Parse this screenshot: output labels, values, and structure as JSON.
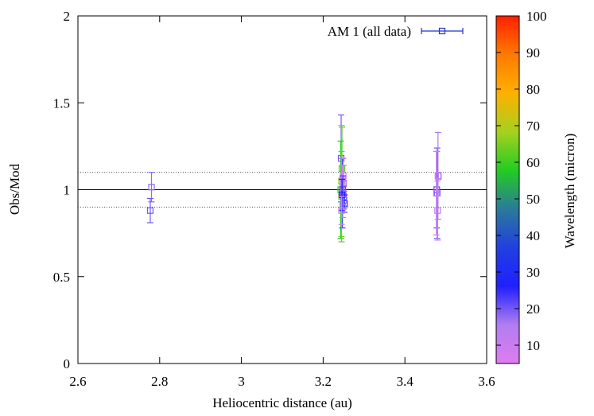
{
  "chart_data": {
    "type": "scatter",
    "xlabel": "Heliocentric distance (au)",
    "ylabel": "Obs/Mod",
    "xlim": [
      2.6,
      3.6
    ],
    "ylim": [
      0,
      2
    ],
    "xticks": [
      "2.6",
      "2.8",
      "3",
      "3.2",
      "3.4",
      "3.6"
    ],
    "yticks": [
      "0",
      "0.5",
      "1",
      "1.5",
      "2"
    ],
    "grid": false,
    "legend_position": "top-right",
    "series": [
      {
        "name": "AM 1 (all data)",
        "marker": "open-square",
        "legend_color": "#2233cc",
        "points": [
          {
            "x": 2.78,
            "y": 1.015,
            "err": 0.085,
            "wl": 18
          },
          {
            "x": 2.777,
            "y": 0.88,
            "err": 0.07,
            "wl": 20
          },
          {
            "x": 3.244,
            "y": 1.18,
            "err": 0.25,
            "wl": 20
          },
          {
            "x": 3.246,
            "y": 1.12,
            "err": 0.24,
            "wl": 62
          },
          {
            "x": 3.245,
            "y": 1.05,
            "err": 0.32,
            "wl": 65
          },
          {
            "x": 3.243,
            "y": 1.0,
            "err": 0.28,
            "wl": 58
          },
          {
            "x": 3.247,
            "y": 0.98,
            "err": 0.2,
            "wl": 24
          },
          {
            "x": 3.245,
            "y": 0.96,
            "err": 0.26,
            "wl": 64
          },
          {
            "x": 3.249,
            "y": 1.08,
            "err": 0.1,
            "wl": 8
          },
          {
            "x": 3.248,
            "y": 1.06,
            "err": 0.08,
            "wl": 10
          },
          {
            "x": 3.25,
            "y": 1.04,
            "err": 0.1,
            "wl": 12
          },
          {
            "x": 3.247,
            "y": 1.02,
            "err": 0.12,
            "wl": 6
          },
          {
            "x": 3.248,
            "y": 1.0,
            "err": 0.08,
            "wl": 22
          },
          {
            "x": 3.249,
            "y": 0.98,
            "err": 0.07,
            "wl": 16
          },
          {
            "x": 3.25,
            "y": 0.96,
            "err": 0.06,
            "wl": 20
          },
          {
            "x": 3.251,
            "y": 0.94,
            "err": 0.05,
            "wl": 18
          },
          {
            "x": 3.252,
            "y": 0.92,
            "err": 0.05,
            "wl": 24
          },
          {
            "x": 3.248,
            "y": 0.9,
            "err": 0.06,
            "wl": 14
          },
          {
            "x": 3.246,
            "y": 0.97,
            "err": 0.09,
            "wl": 26
          },
          {
            "x": 3.245,
            "y": 0.88,
            "err": 0.08,
            "wl": 9
          },
          {
            "x": 3.478,
            "y": 1.0,
            "err": 0.22,
            "wl": 22
          },
          {
            "x": 3.479,
            "y": 0.98,
            "err": 0.26,
            "wl": 20
          },
          {
            "x": 3.481,
            "y": 1.08,
            "err": 0.25,
            "wl": 16
          },
          {
            "x": 3.482,
            "y": 1.08,
            "err": 0.02,
            "wl": 14
          },
          {
            "x": 3.48,
            "y": 0.88,
            "err": 0.17,
            "wl": 12
          },
          {
            "x": 3.477,
            "y": 0.98,
            "err": 0.24,
            "wl": 9
          }
        ]
      }
    ],
    "reference_lines": [
      {
        "y": 1.0,
        "style": "solid"
      },
      {
        "y": 1.1,
        "style": "dotted"
      },
      {
        "y": 0.9,
        "style": "dotted"
      }
    ],
    "colorbar": {
      "label": "Wavelength (micron)",
      "range": [
        5,
        100
      ],
      "ticks": [
        "10",
        "20",
        "30",
        "40",
        "50",
        "60",
        "70",
        "80",
        "90",
        "100"
      ],
      "colormap": [
        "#e07cf0",
        "#b07ef0",
        "#2020ff",
        "#2040e0",
        "#2a7a9a",
        "#22cc22",
        "#a6d020",
        "#ffb000",
        "#ff7a00",
        "#ff2000"
      ]
    }
  }
}
